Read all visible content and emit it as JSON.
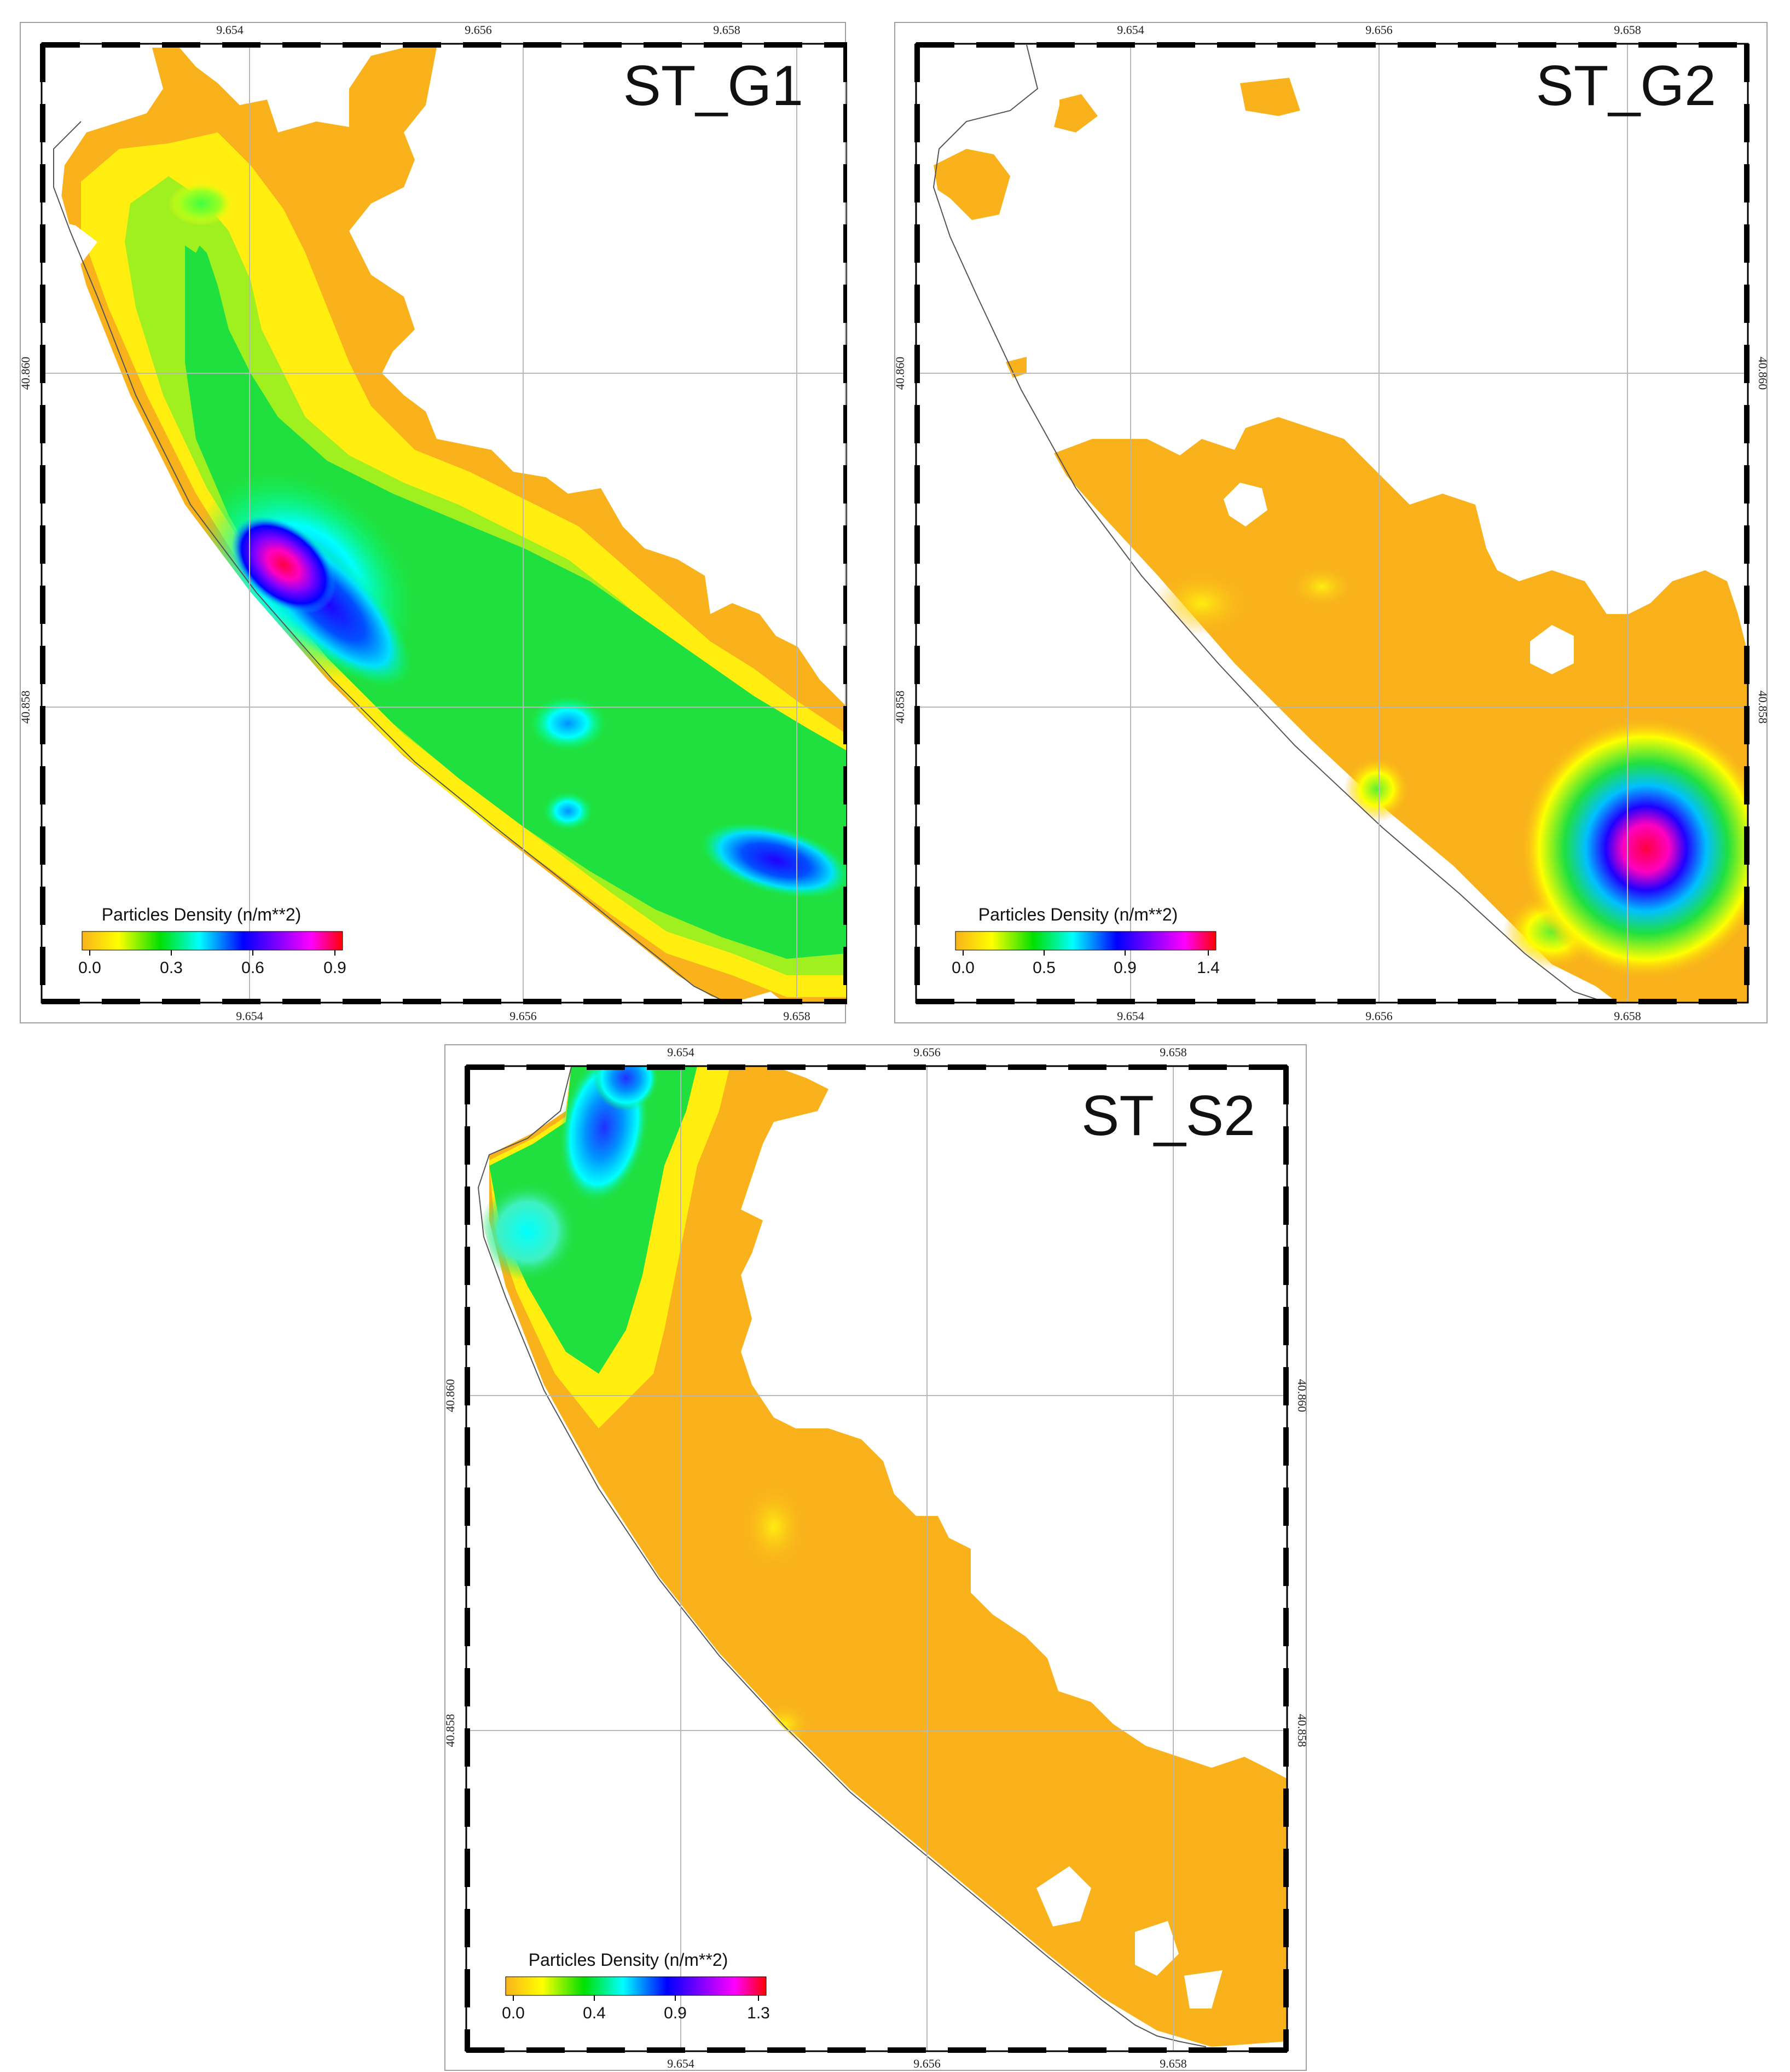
{
  "colors": {
    "frame": "#000000",
    "grid": "#b8b8b8",
    "land_outline": "#555555",
    "base_orange": "#f9b21b",
    "colorbar": [
      "#f9b21b",
      "#ffff00",
      "#00e000",
      "#00ffff",
      "#0000ff",
      "#8000ff",
      "#ff00ff",
      "#ff0000"
    ]
  },
  "panels": [
    {
      "id": "ST_G1",
      "title": "ST_G1",
      "top_ticks": [
        "9.654",
        "9.656",
        "9.658"
      ],
      "bottom_ticks": [
        "9.654",
        "9.656",
        "9.658"
      ],
      "left_ticks": [
        "40.860",
        "40.858"
      ],
      "right_ticks": [],
      "legend": {
        "title": "Particles Density (n/m**2)",
        "ticks": [
          "0.0",
          "0.3",
          "0.6",
          "0.9"
        ],
        "range": [
          0.0,
          0.9
        ]
      }
    },
    {
      "id": "ST_G2",
      "title": "ST_G2",
      "top_ticks": [
        "9.654",
        "9.656",
        "9.658"
      ],
      "bottom_ticks": [
        "9.654",
        "9.656",
        "9.658"
      ],
      "left_ticks": [
        "40.860",
        "40.858"
      ],
      "right_ticks": [
        "40.860",
        "40.858"
      ],
      "legend": {
        "title": "Particles Density (n/m**2)",
        "ticks": [
          "0.0",
          "0.5",
          "0.9",
          "1.4"
        ],
        "range": [
          0.0,
          1.4
        ]
      }
    },
    {
      "id": "ST_S2",
      "title": "ST_S2",
      "top_ticks": [
        "9.654",
        "9.656",
        "9.658"
      ],
      "bottom_ticks": [
        "9.654",
        "9.656",
        "9.658"
      ],
      "left_ticks": [
        "40.860",
        "40.858"
      ],
      "right_ticks": [
        "40.860",
        "40.858"
      ],
      "legend": {
        "title": "Particles Density (n/m**2)",
        "ticks": [
          "0.0",
          "0.4",
          "0.9",
          "1.3"
        ],
        "range": [
          0.0,
          1.3
        ]
      }
    }
  ]
}
